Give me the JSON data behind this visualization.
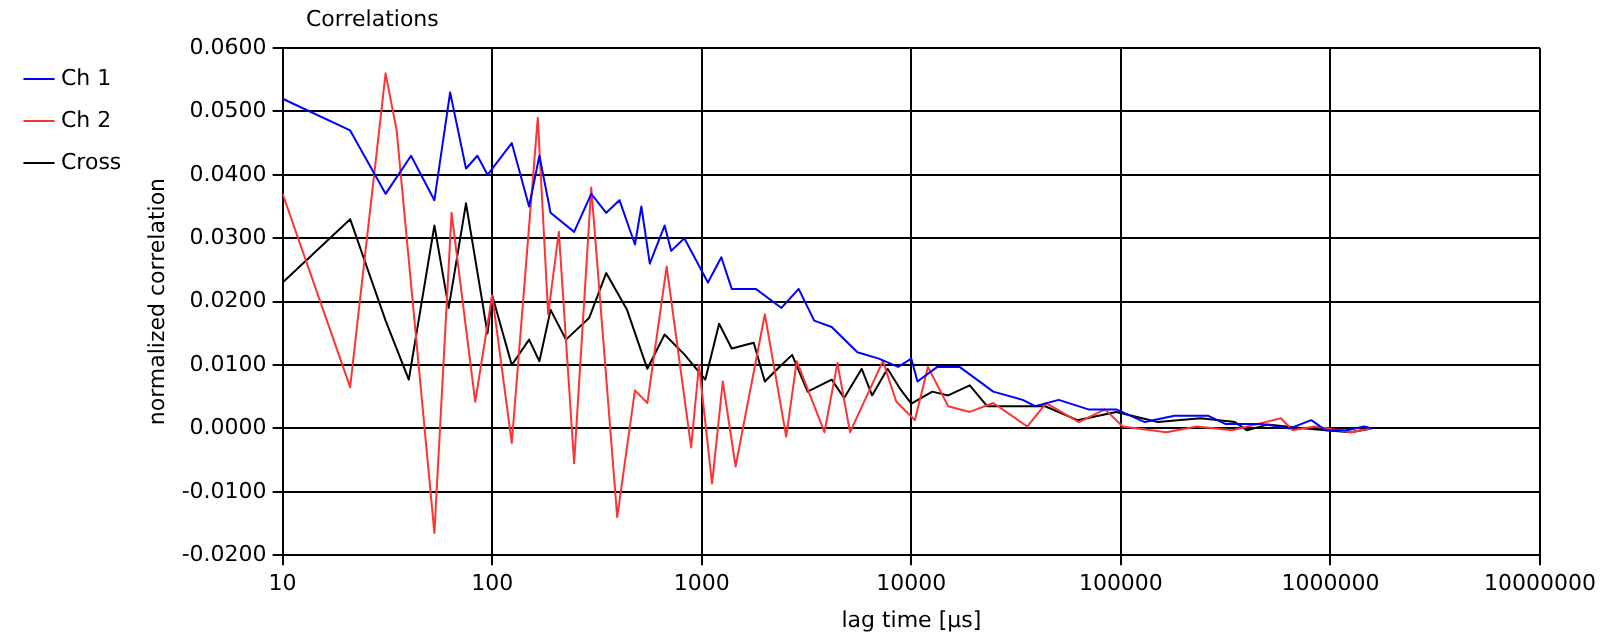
{
  "chart_data": {
    "type": "line",
    "title": "Correlations",
    "xlabel": "lag time [µs]",
    "ylabel": "normalized correlation",
    "log": "x",
    "grid": true,
    "legend": "top left",
    "marker": "none",
    "line_style": "solid",
    "xlim": [
      10,
      10000000
    ],
    "xticks": [
      10,
      100,
      1000,
      10000,
      100000,
      1000000,
      10000000
    ],
    "ylim": [
      -0.02,
      0.06
    ],
    "yticks": [
      {
        "value": -0.02,
        "label": "-0.0200"
      },
      {
        "value": -0.01,
        "label": "-0.0100"
      },
      {
        "value": 0,
        "label": "0.0000"
      },
      {
        "value": 0.01,
        "label": "0.0100"
      },
      {
        "value": 0.02,
        "label": "0.0200"
      },
      {
        "value": 0.03,
        "label": "0.0300"
      },
      {
        "value": 0.04,
        "label": "0.0400"
      },
      {
        "value": 0.05,
        "label": "0.0500"
      },
      {
        "value": 0.06,
        "label": "0.0600"
      }
    ],
    "series": [
      {
        "name": "Ch 1",
        "color": "#0000ff",
        "x": [
          10,
          21,
          31,
          41,
          53,
          63,
          75,
          85,
          95,
          124,
          150,
          168,
          190,
          246,
          297,
          350,
          405,
          480,
          515,
          565,
          665,
          715,
          826,
          1070,
          1240,
          1390,
          1810,
          2400,
          2900,
          3440,
          4170,
          5530,
          7000,
          8650,
          10000,
          10700,
          13300,
          17000,
          24600,
          34000,
          39000,
          50500,
          70000,
          95000,
          130000,
          180000,
          260000,
          315000,
          470000,
          640000,
          810000,
          950000,
          1200000,
          1450000,
          1570000
        ],
        "values": [
          0.052,
          0.047,
          0.037,
          0.043,
          0.036,
          0.053,
          0.041,
          0.043,
          0.04,
          0.045,
          0.035,
          0.043,
          0.034,
          0.031,
          0.037,
          0.034,
          0.036,
          0.029,
          0.035,
          0.026,
          0.032,
          0.028,
          0.03,
          0.023,
          0.027,
          0.022,
          0.022,
          0.019,
          0.022,
          0.017,
          0.016,
          0.012,
          0.011,
          0.0097,
          0.011,
          0.0074,
          0.0097,
          0.0097,
          0.0058,
          0.0045,
          0.0035,
          0.0045,
          0.003,
          0.003,
          0.001,
          0.002,
          0.002,
          0.0007,
          0.0007,
          0,
          0.0013,
          -0.0003,
          -0.0003,
          0.0003,
          0
        ]
      },
      {
        "name": "Ch 2",
        "color": "#ff3333",
        "x": [
          10,
          21,
          31,
          35,
          53,
          64,
          83,
          100,
          124,
          165,
          185,
          208,
          246,
          297,
          395,
          480,
          550,
          680,
          890,
          970,
          1120,
          1260,
          1450,
          2000,
          2530,
          2840,
          3850,
          4440,
          5100,
          7320,
          8480,
          10400,
          12000,
          15000,
          19000,
          24600,
          35800,
          44000,
          63000,
          84000,
          102000,
          165000,
          230000,
          340000,
          580000,
          660000,
          840000,
          1100000,
          1250000,
          1570000
        ],
        "values": [
          0.037,
          0.0065,
          0.056,
          0.047,
          -0.0165,
          0.034,
          0.0042,
          0.021,
          -0.0023,
          0.049,
          0.018,
          0.031,
          -0.0055,
          0.038,
          -0.014,
          0.006,
          0.004,
          0.0255,
          -0.003,
          0.01,
          -0.0087,
          0.0074,
          -0.006,
          0.018,
          -0.0013,
          0.0106,
          -0.0006,
          0.0103,
          -0.0006,
          0.0106,
          0.0042,
          0.0013,
          0.0097,
          0.0035,
          0.0026,
          0.004,
          0.0003,
          0.004,
          0.001,
          0.003,
          0.0003,
          -0.0006,
          0.0003,
          -0.0003,
          0.0016,
          -0.0003,
          0.0003,
          -0.0003,
          -0.0006,
          0
        ]
      },
      {
        "name": "Cross",
        "color": "#000000",
        "x": [
          10,
          21,
          31,
          40,
          53,
          62,
          75,
          95,
          100,
          124,
          150,
          168,
          190,
          225,
          290,
          350,
          440,
          550,
          665,
          830,
          1040,
          1210,
          1390,
          1770,
          2000,
          2300,
          2700,
          3200,
          4170,
          4780,
          5800,
          6500,
          7700,
          8900,
          10000,
          12600,
          15000,
          19000,
          23000,
          31000,
          43500,
          62000,
          95000,
          150000,
          240000,
          350000,
          400000,
          500000,
          760000,
          950000,
          1250000,
          1570000
        ],
        "values": [
          0.023,
          0.033,
          0.017,
          0.0077,
          0.032,
          0.019,
          0.0355,
          0.015,
          0.021,
          0.01,
          0.014,
          0.0106,
          0.0187,
          0.014,
          0.0174,
          0.0245,
          0.0187,
          0.0094,
          0.0148,
          0.0116,
          0.0077,
          0.0165,
          0.0126,
          0.0135,
          0.0074,
          0.0094,
          0.0116,
          0.0058,
          0.0077,
          0.0048,
          0.0094,
          0.0052,
          0.0094,
          0.0061,
          0.0039,
          0.0058,
          0.0052,
          0.0068,
          0.0035,
          0.0035,
          0.0035,
          0.0013,
          0.0026,
          0.001,
          0.0016,
          0.001,
          -0.0003,
          0.0006,
          0,
          -0.0003,
          -0.0006,
          0
        ]
      }
    ]
  }
}
